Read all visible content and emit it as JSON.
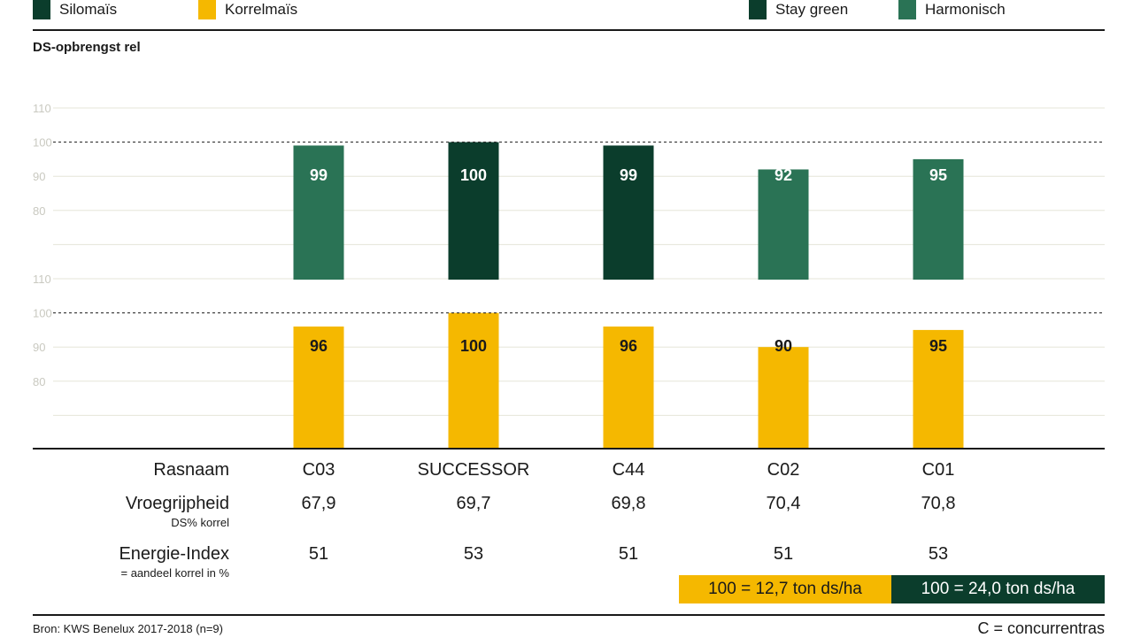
{
  "legend": [
    {
      "label": "Silomaïs",
      "color": "#0b3d2c"
    },
    {
      "label": "Korrelmaïs",
      "color": "#f5b800"
    },
    {
      "label": "Stay green",
      "color": "#0b3d2c"
    },
    {
      "label": "Harmonisch",
      "color": "#2a7355"
    }
  ],
  "yaxis_title": "DS-opbrengst rel",
  "chart_data": {
    "type": "bar",
    "title": "DS-opbrengst rel",
    "categories": [
      "C03",
      "SUCCESSOR",
      "C44",
      "C02",
      "C01"
    ],
    "series": [
      {
        "name": "Silomaïs",
        "values": [
          99,
          100,
          99,
          92,
          95
        ],
        "colors": [
          "#2a7355",
          "#0b3d2c",
          "#0b3d2c",
          "#2a7355",
          "#2a7355"
        ]
      },
      {
        "name": "Korrelmaïs",
        "values": [
          96,
          100,
          96,
          90,
          95
        ],
        "color": "#f5b800"
      }
    ],
    "panels": [
      "Silomaïs",
      "Korrelmaïs"
    ],
    "yticks": [
      "110",
      "100",
      "90",
      "80"
    ],
    "ylim": [
      60,
      110
    ],
    "reference_line": 100,
    "grid": true
  },
  "table": {
    "rasnaam": {
      "title": "Rasnaam",
      "values": [
        "C03",
        "SUCCESSOR",
        "C44",
        "C02",
        "C01"
      ]
    },
    "vroeg": {
      "title": "Vroegrijpheid",
      "sub": "DS% korrel",
      "values": [
        "67,9",
        "69,7",
        "69,8",
        "70,4",
        "70,8"
      ]
    },
    "energie": {
      "title": "Energie-Index",
      "sub": "= aandeel korrel in %",
      "values": [
        "51",
        "53",
        "51",
        "51",
        "53"
      ]
    }
  },
  "reference": {
    "korrel": "100 = 12,7 ton ds/ha",
    "silo": "100 = 24,0 ton ds/ha"
  },
  "footer": {
    "source": "Bron: KWS Benelux 2017-2018 (n=9)",
    "note": "C = concurrentras"
  }
}
